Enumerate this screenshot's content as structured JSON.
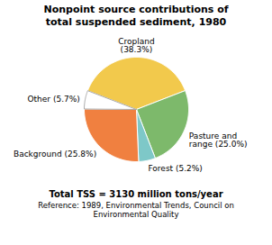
{
  "chart_data": {
    "type": "pie",
    "title": "Nonpoint source contributions of\ntotal suspended sediment, 1980",
    "categories": [
      "Cropland\n(38.3%)",
      "Pasture and\nrange (25.0%)",
      "Forest (5.2%)",
      "Background (25.8%)",
      "Other (5.7%)"
    ],
    "values": [
      38.3,
      25.0,
      5.2,
      25.8,
      5.7
    ],
    "colors": [
      "#F2C94C",
      "#7DB96B",
      "#7EC8C8",
      "#F08040",
      "#FFFFFF"
    ],
    "annotations": [
      "Total TSS = 3130 million tons/year",
      "Reference: 1989, Environmental Trends, Council on\nEnvironmental Quality"
    ]
  }
}
